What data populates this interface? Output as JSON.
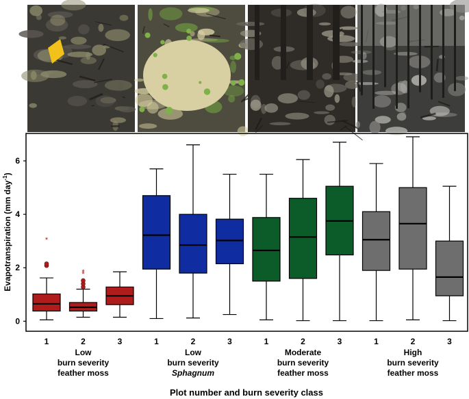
{
  "photos": [
    {
      "name": "Low burn severity feather moss site photo",
      "icon": "burned-forest-floor-with-yellow-flag",
      "tones": [
        "#3b3934",
        "#5a5650",
        "#8c8a6a"
      ],
      "accent": "#f2c21a"
    },
    {
      "name": "Low burn severity Sphagnum site photo",
      "icon": "burned-sphagnum-hummock",
      "tones": [
        "#4e4c3e",
        "#d8d0a2",
        "#6f9a42"
      ],
      "accent": "#7fb04a"
    },
    {
      "name": "Moderate burn severity feather moss site photo",
      "icon": "charred-roots-and-ash",
      "tones": [
        "#2f2c28",
        "#6d6a62",
        "#9b9889"
      ],
      "accent": "#c9c9c9"
    },
    {
      "name": "High burn severity feather moss site photo",
      "icon": "burned-standing-trees",
      "tones": [
        "#3d3d3b",
        "#8b8a86",
        "#c4c3be"
      ],
      "accent": "#e2e2de"
    }
  ],
  "chart_data": {
    "type": "box",
    "ylabel": "Evapotranspiration (mm day",
    "ylabel_sup": "-1",
    "ylabel_close": ")",
    "xlabel": "Plot number and burn severity class",
    "ylim": [
      -0.35,
      7.0
    ],
    "yticks": [
      0,
      2,
      4,
      6
    ],
    "groups": [
      {
        "label_lines": [
          "Low",
          "burn severity",
          "feather moss"
        ],
        "italic_line": -1,
        "color": "#b01c1c",
        "plots": [
          {
            "plot": "1",
            "whisker_low": 0.05,
            "q1": 0.38,
            "median": 0.65,
            "q3": 1.02,
            "whisker_high": 1.62,
            "outliers": [
              2.08,
              2.15
            ],
            "extremes": [
              3.05
            ]
          },
          {
            "plot": "2",
            "whisker_low": 0.15,
            "q1": 0.38,
            "median": 0.52,
            "q3": 0.7,
            "whisker_high": 1.2,
            "outliers": [
              1.28,
              1.4,
              1.52
            ],
            "extremes": [
              1.78,
              1.85
            ]
          },
          {
            "plot": "3",
            "whisker_low": 0.15,
            "q1": 0.62,
            "median": 0.95,
            "q3": 1.28,
            "whisker_high": 1.85,
            "outliers": [],
            "extremes": []
          }
        ]
      },
      {
        "label_lines": [
          "Low",
          "burn severity",
          "Sphagnum"
        ],
        "italic_line": 2,
        "color": "#0f2da0",
        "plots": [
          {
            "plot": "1",
            "whisker_low": 0.1,
            "q1": 1.95,
            "median": 3.22,
            "q3": 4.7,
            "whisker_high": 5.7,
            "outliers": [],
            "extremes": []
          },
          {
            "plot": "2",
            "whisker_low": 0.12,
            "q1": 1.8,
            "median": 2.85,
            "q3": 4.0,
            "whisker_high": 6.6,
            "outliers": [],
            "extremes": []
          },
          {
            "plot": "3",
            "whisker_low": 0.25,
            "q1": 2.15,
            "median": 3.02,
            "q3": 3.82,
            "whisker_high": 5.5,
            "outliers": [],
            "extremes": []
          }
        ]
      },
      {
        "label_lines": [
          "Moderate",
          "burn severity",
          "feather moss"
        ],
        "italic_line": -1,
        "color": "#0c5c2a",
        "plots": [
          {
            "plot": "1",
            "whisker_low": 0.05,
            "q1": 1.5,
            "median": 2.65,
            "q3": 3.88,
            "whisker_high": 5.5,
            "outliers": [],
            "extremes": []
          },
          {
            "plot": "2",
            "whisker_low": 0.02,
            "q1": 1.6,
            "median": 3.15,
            "q3": 4.6,
            "whisker_high": 6.05,
            "outliers": [],
            "extremes": []
          },
          {
            "plot": "3",
            "whisker_low": 0.02,
            "q1": 2.48,
            "median": 3.75,
            "q3": 5.05,
            "whisker_high": 6.7,
            "outliers": [],
            "extremes": []
          }
        ]
      },
      {
        "label_lines": [
          "High",
          "burn severity",
          "feather moss"
        ],
        "italic_line": -1,
        "color": "#6e6e6e",
        "plots": [
          {
            "plot": "1",
            "whisker_low": 0.02,
            "q1": 1.9,
            "median": 3.05,
            "q3": 4.1,
            "whisker_high": 5.9,
            "outliers": [],
            "extremes": []
          },
          {
            "plot": "2",
            "whisker_low": 0.05,
            "q1": 1.95,
            "median": 3.65,
            "q3": 5.0,
            "whisker_high": 6.9,
            "outliers": [],
            "extremes": []
          },
          {
            "plot": "3",
            "whisker_low": 0.02,
            "q1": 0.95,
            "median": 1.65,
            "q3": 3.0,
            "whisker_high": 5.05,
            "outliers": [],
            "extremes": []
          }
        ]
      }
    ]
  }
}
